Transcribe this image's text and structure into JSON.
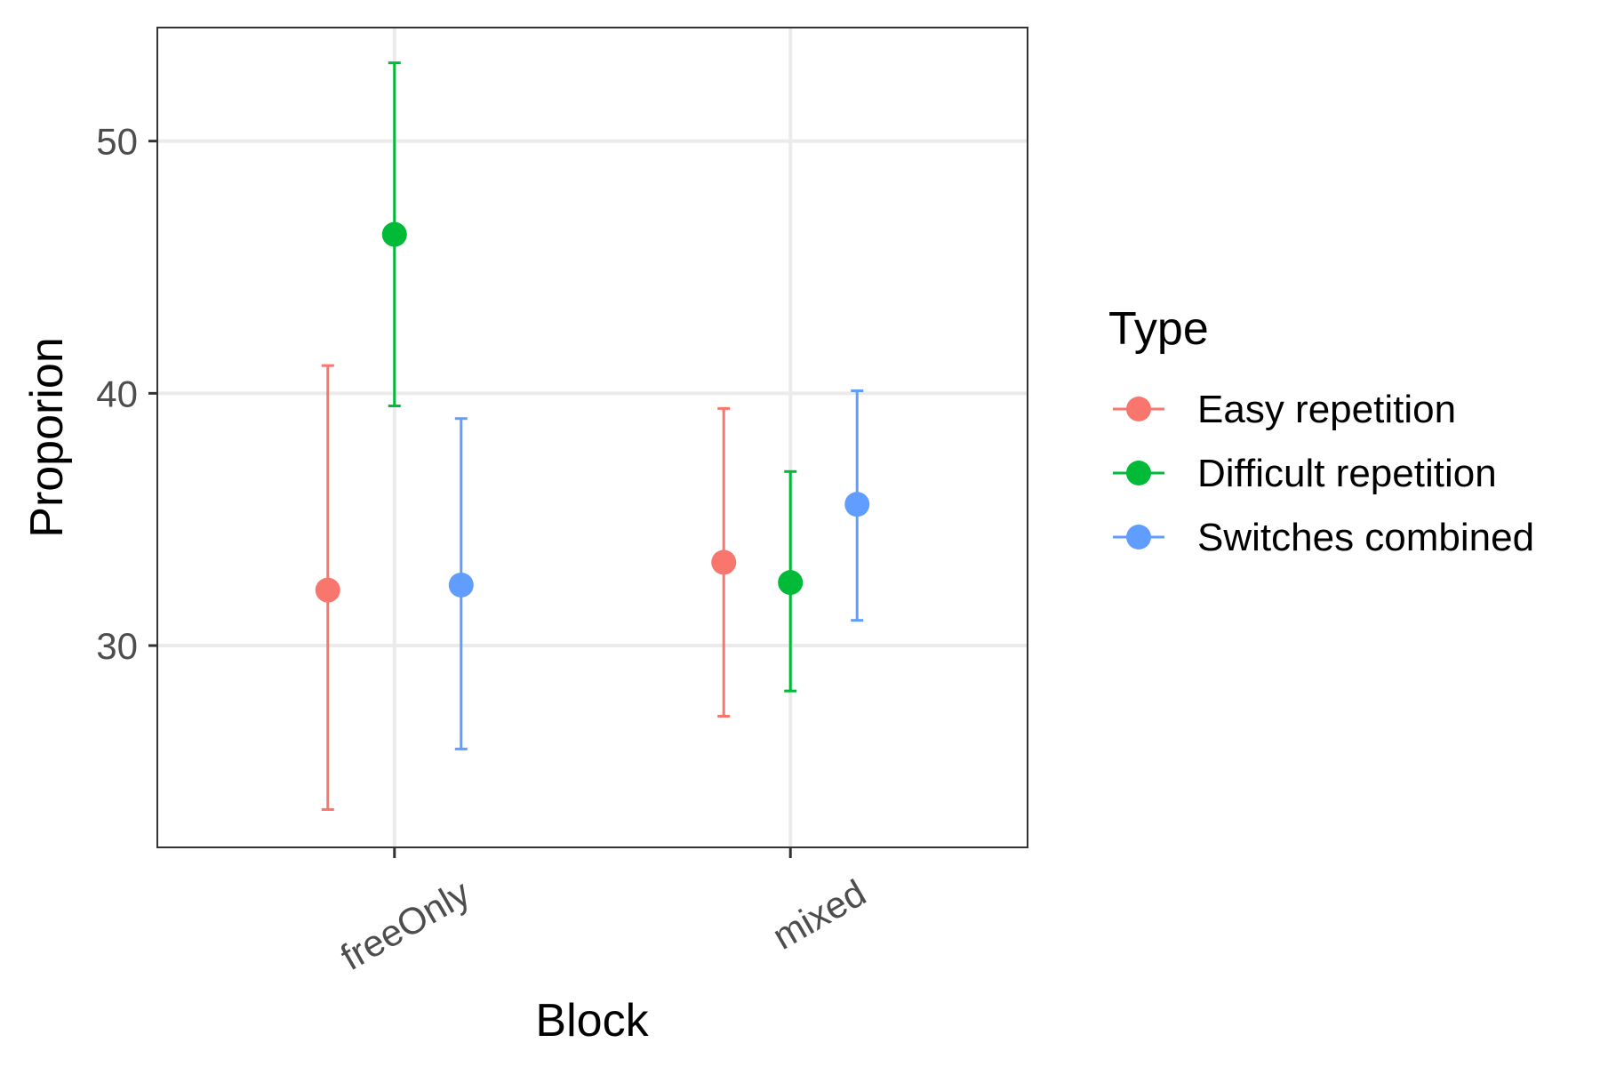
{
  "chart_data": {
    "type": "scatter",
    "xlabel": "Block",
    "ylabel": "Proporion",
    "categories": [
      "freeOnly",
      "mixed"
    ],
    "ylim": [
      22,
      54.5
    ],
    "y_ticks": [
      "30",
      "40",
      "50"
    ],
    "grid": true,
    "legend": {
      "title": "Type",
      "placement": "right"
    },
    "series": [
      {
        "name": "Easy repetition",
        "color": "#F8766D",
        "values": [
          32.2,
          33.3
        ],
        "lower": [
          23.5,
          27.2
        ],
        "upper": [
          41.1,
          39.4
        ]
      },
      {
        "name": "Difficult repetition",
        "color": "#00BA38",
        "values": [
          46.3,
          32.5
        ],
        "lower": [
          39.5,
          28.2
        ],
        "upper": [
          53.1,
          36.9
        ]
      },
      {
        "name": "Switches combined",
        "color": "#619CFF",
        "values": [
          32.4,
          35.6
        ],
        "lower": [
          25.9,
          31.0
        ],
        "upper": [
          39.0,
          40.1
        ]
      }
    ]
  }
}
